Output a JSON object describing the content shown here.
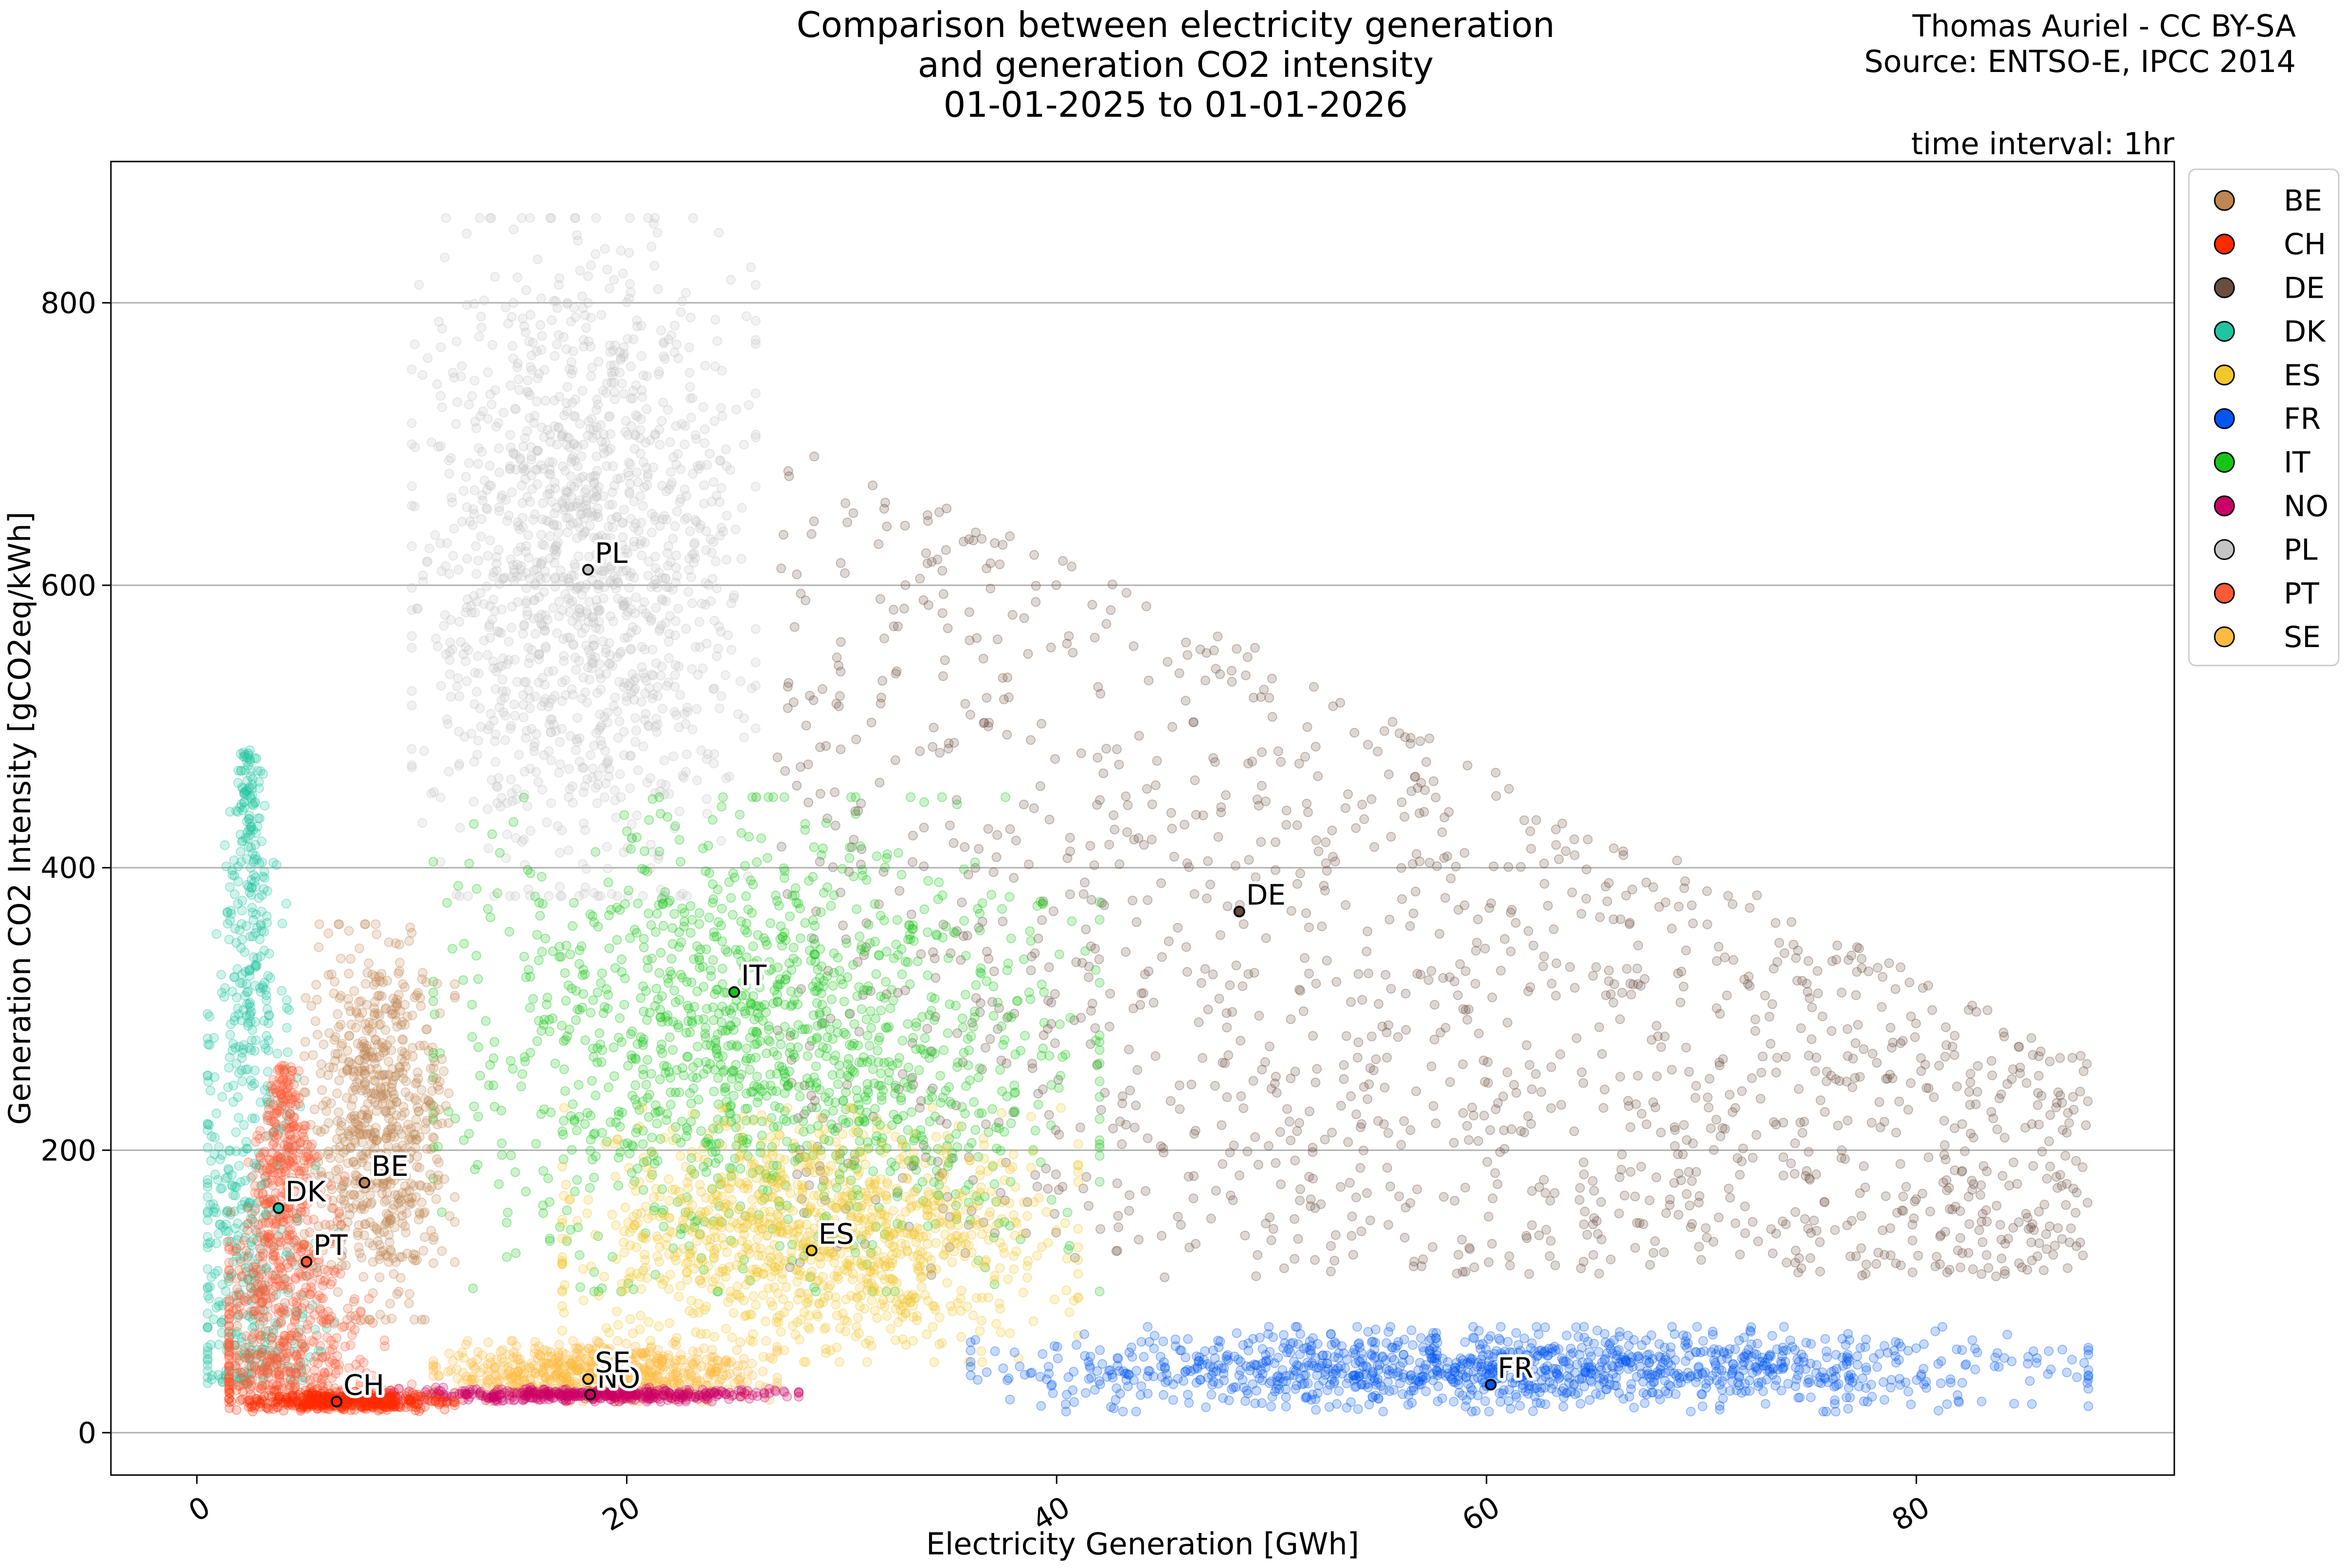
{
  "title_lines": [
    "Comparison between electricity generation",
    "and generation CO2 intensity",
    "01-01-2025 to 01-01-2026"
  ],
  "credit_lines": [
    "Thomas Auriel - CC BY-SA",
    "Source: ENTSO-E, IPCC 2014"
  ],
  "time_interval": "time interval: 1hr",
  "chart_data": {
    "type": "scatter",
    "xlabel": "Electricity Generation [GWh]",
    "ylabel": "Generation CO2 Intensity [gCO2eq/kWh]",
    "xlim": [
      -4,
      92
    ],
    "ylim": [
      -30,
      900
    ],
    "xticks": [
      0,
      20,
      40,
      60,
      80
    ],
    "yticks": [
      0,
      200,
      400,
      600,
      800
    ],
    "grid": "horizontal",
    "legend_position": "right, outside top",
    "series": [
      {
        "name": "BE",
        "color": "#c08650",
        "mean": {
          "x": 7.8,
          "y": 177
        },
        "spread": {
          "x_min": 5,
          "x_max": 12,
          "y_min": 80,
          "y_max": 360
        }
      },
      {
        "name": "CH",
        "color": "#ff2a00",
        "mean": {
          "x": 6.5,
          "y": 22
        },
        "spread": {
          "x_min": 1.5,
          "x_max": 12,
          "y_min": 15,
          "y_max": 30
        }
      },
      {
        "name": "DE",
        "color": "#6b4c3f",
        "mean": {
          "x": 48.5,
          "y": 369
        },
        "spread": {
          "x_min": 27,
          "x_max": 88,
          "y_min": 100,
          "y_max": 720
        }
      },
      {
        "name": "DK",
        "color": "#1fc4a0",
        "mean": {
          "x": 3.8,
          "y": 159
        },
        "spread": {
          "x_min": 0.5,
          "x_max": 7,
          "y_min": 35,
          "y_max": 485
        }
      },
      {
        "name": "ES",
        "color": "#f2c72c",
        "mean": {
          "x": 28.6,
          "y": 129
        },
        "spread": {
          "x_min": 17,
          "x_max": 41,
          "y_min": 50,
          "y_max": 230
        }
      },
      {
        "name": "FR",
        "color": "#0057f0",
        "mean": {
          "x": 60.2,
          "y": 34
        },
        "spread": {
          "x_min": 36,
          "x_max": 88,
          "y_min": 15,
          "y_max": 75
        }
      },
      {
        "name": "IT",
        "color": "#16c416",
        "mean": {
          "x": 25.0,
          "y": 312
        },
        "spread": {
          "x_min": 11,
          "x_max": 42,
          "y_min": 100,
          "y_max": 450
        }
      },
      {
        "name": "NO",
        "color": "#cc0066",
        "mean": {
          "x": 18.3,
          "y": 27
        },
        "spread": {
          "x_min": 9,
          "x_max": 28,
          "y_min": 22,
          "y_max": 32
        }
      },
      {
        "name": "PL",
        "color": "#c4c4c4",
        "mean": {
          "x": 18.2,
          "y": 611
        },
        "spread": {
          "x_min": 10,
          "x_max": 26,
          "y_min": 380,
          "y_max": 860
        }
      },
      {
        "name": "PT",
        "color": "#ff5a36",
        "mean": {
          "x": 5.1,
          "y": 121
        },
        "spread": {
          "x_min": 1.5,
          "x_max": 10,
          "y_min": 30,
          "y_max": 260
        }
      },
      {
        "name": "SE",
        "color": "#fdbb40",
        "mean": {
          "x": 18.2,
          "y": 38
        },
        "spread": {
          "x_min": 11,
          "x_max": 27,
          "y_min": 22,
          "y_max": 65
        }
      }
    ]
  }
}
